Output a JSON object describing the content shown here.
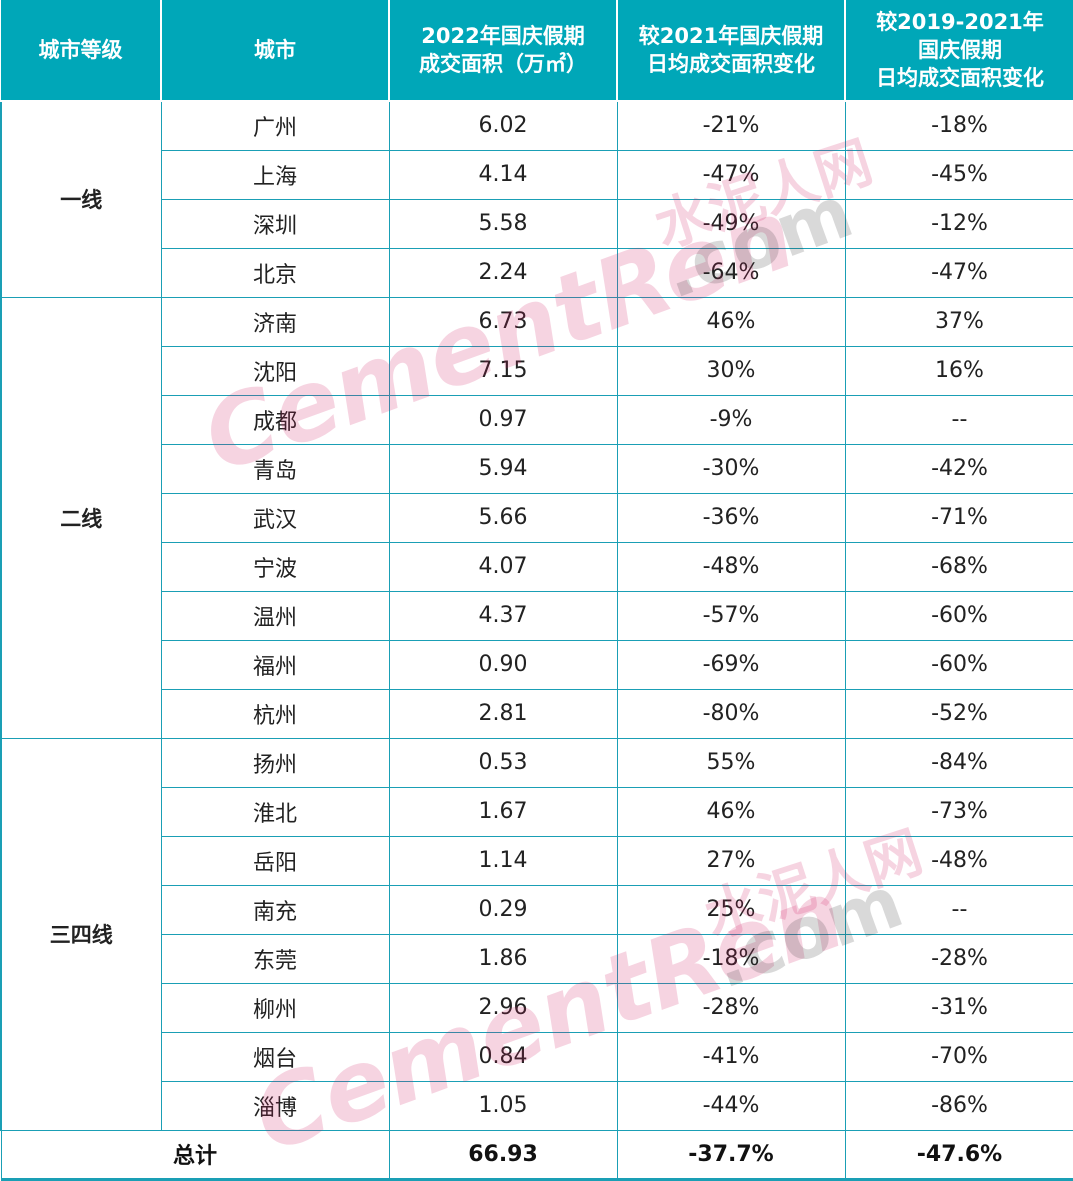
{
  "headers": [
    "城市等级",
    "城市",
    "2022年国庆假期\n成交面积（万㎡）",
    "较2021年国庆假期\n日均成交面积变化",
    "较2019-2021年\n国庆假期\n日均成交面积变化"
  ],
  "groups": [
    {
      "tier": "一线",
      "rows": [
        [
          "广州",
          "6.02",
          "-21%",
          "-18%"
        ],
        [
          "上海",
          "4.14",
          "-47%",
          "-45%"
        ],
        [
          "深圳",
          "5.58",
          "-49%",
          "-12%"
        ],
        [
          "北京",
          "2.24",
          "-64%",
          "-47%"
        ]
      ]
    },
    {
      "tier": "二线",
      "rows": [
        [
          "济南",
          "6.73",
          "46%",
          "37%"
        ],
        [
          "沈阳",
          "7.15",
          "30%",
          "16%"
        ],
        [
          "成都",
          "0.97",
          "-9%",
          "--"
        ],
        [
          "青岛",
          "5.94",
          "-30%",
          "-42%"
        ],
        [
          "武汉",
          "5.66",
          "-36%",
          "-71%"
        ],
        [
          "宁波",
          "4.07",
          "-48%",
          "-68%"
        ],
        [
          "温州",
          "4.37",
          "-57%",
          "-60%"
        ],
        [
          "福州",
          "0.90",
          "-69%",
          "-60%"
        ],
        [
          "杭州",
          "2.81",
          "-80%",
          "-52%"
        ]
      ]
    },
    {
      "tier": "三四线",
      "rows": [
        [
          "扬州",
          "0.53",
          "55%",
          "-84%"
        ],
        [
          "淮北",
          "1.67",
          "46%",
          "-73%"
        ],
        [
          "岳阳",
          "1.14",
          "27%",
          "-48%"
        ],
        [
          "南充",
          "0.29",
          "25%",
          "--"
        ],
        [
          "东莞",
          "1.86",
          "-18%",
          "-28%"
        ],
        [
          "柳州",
          "2.96",
          "-28%",
          "-31%"
        ],
        [
          "烟台",
          "0.84",
          "-41%",
          "-70%"
        ],
        [
          "淄博",
          "1.05",
          "-44%",
          "-86%"
        ]
      ]
    }
  ],
  "total": {
    "label": "总计",
    "area": "66.93",
    "vs2021": "-37.7%",
    "vs2019_2021": "-47.6%"
  },
  "watermark": {
    "cn": "水泥人网",
    "en": "CementRen",
    "com": ".com"
  },
  "colors": {
    "header_bg": "#00a7b8",
    "border": "#1a9fb5"
  }
}
